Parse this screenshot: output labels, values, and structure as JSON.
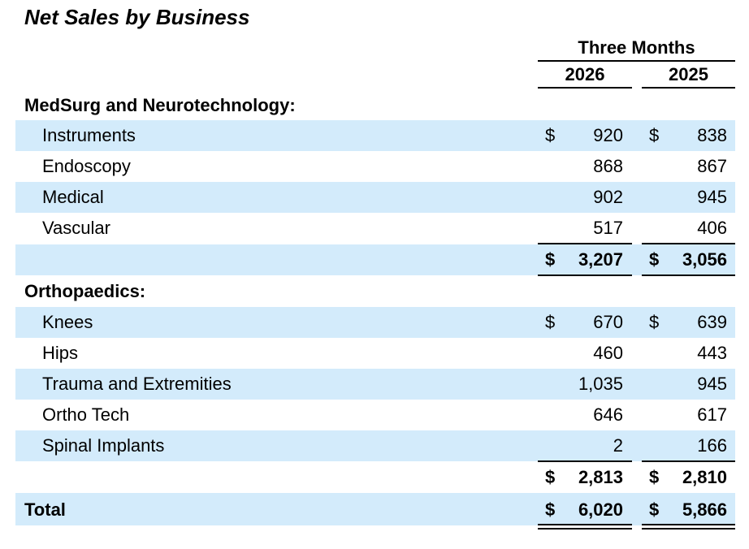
{
  "title": "Net Sales by Business",
  "header": {
    "period": "Three Months",
    "years": [
      "2026",
      "2025"
    ]
  },
  "sections": [
    {
      "label": "MedSurg and Neurotechnology:",
      "rows": [
        {
          "label": "Instruments",
          "dollar": "$",
          "v2026": "920",
          "v2025": "838"
        },
        {
          "label": "Endoscopy",
          "dollar": "",
          "v2026": "868",
          "v2025": "867"
        },
        {
          "label": "Medical",
          "dollar": "",
          "v2026": "902",
          "v2025": "945"
        },
        {
          "label": "Vascular",
          "dollar": "",
          "v2026": "517",
          "v2025": "406"
        }
      ],
      "subtotal": {
        "dollar": "$",
        "v2026": "3,207",
        "v2025": "3,056"
      }
    },
    {
      "label": "Orthopaedics:",
      "rows": [
        {
          "label": "Knees",
          "dollar": "$",
          "v2026": "670",
          "v2025": "639"
        },
        {
          "label": "Hips",
          "dollar": "",
          "v2026": "460",
          "v2025": "443"
        },
        {
          "label": "Trauma and Extremities",
          "dollar": "",
          "v2026": "1,035",
          "v2025": "945"
        },
        {
          "label": "Ortho Tech",
          "dollar": "",
          "v2026": "646",
          "v2025": "617"
        },
        {
          "label": "Spinal Implants",
          "dollar": "",
          "v2026": "2",
          "v2025": "166"
        }
      ],
      "subtotal": {
        "dollar": "$",
        "v2026": "2,813",
        "v2025": "2,810"
      }
    }
  ],
  "total": {
    "label": "Total",
    "dollar": "$",
    "v2026": "6,020",
    "v2025": "5,866"
  },
  "colors": {
    "row_shade": "#d3ebfb"
  }
}
